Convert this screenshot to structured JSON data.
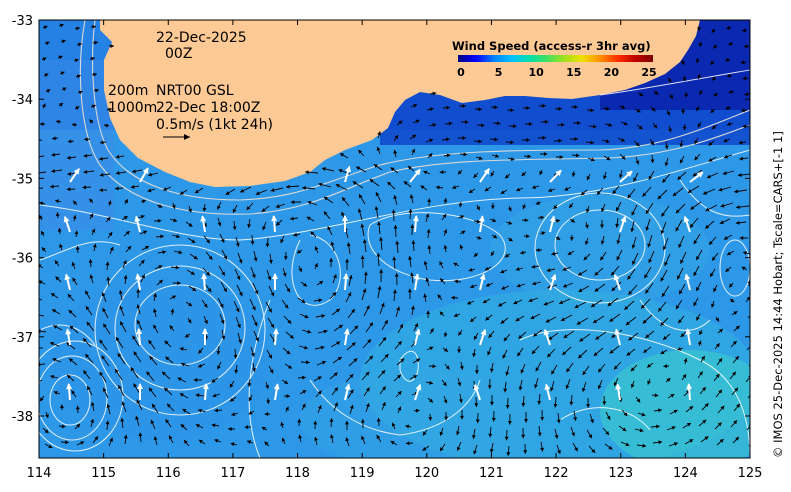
{
  "map": {
    "date": "22-Dec-2025",
    "time": "00Z",
    "depth_shallow": "200m",
    "depth_deep": "1000m",
    "drifter_source": "NRT00 GSL",
    "drifter_time": "22-Dec 18:00Z",
    "arrow_scale": "0.5m/s (1kt 24h)",
    "side_caption": "© IMOS 25-Dec-2025 14:44 Hobart; Tscale=CARS+[-1 1]",
    "land_color": "#fdc994",
    "ocean_color": "#2f9fe8"
  },
  "axes": {
    "lon_ticks": [
      "114",
      "115",
      "116",
      "117",
      "118",
      "119",
      "120",
      "121",
      "122",
      "123",
      "124",
      "125"
    ],
    "lat_ticks": [
      "-33",
      "-34",
      "-35",
      "-36",
      "-37",
      "-38"
    ]
  },
  "legend": {
    "title": "Wind Speed (access-r 3hr avg)",
    "ticks": [
      "0",
      "5",
      "10",
      "15",
      "20",
      "25"
    ],
    "colors": [
      "#000080",
      "#0000ff",
      "#0080ff",
      "#00c0ff",
      "#00e0b0",
      "#40e060",
      "#a0e020",
      "#f0e000",
      "#ff9000",
      "#ff3000",
      "#c00000",
      "#800000"
    ]
  }
}
